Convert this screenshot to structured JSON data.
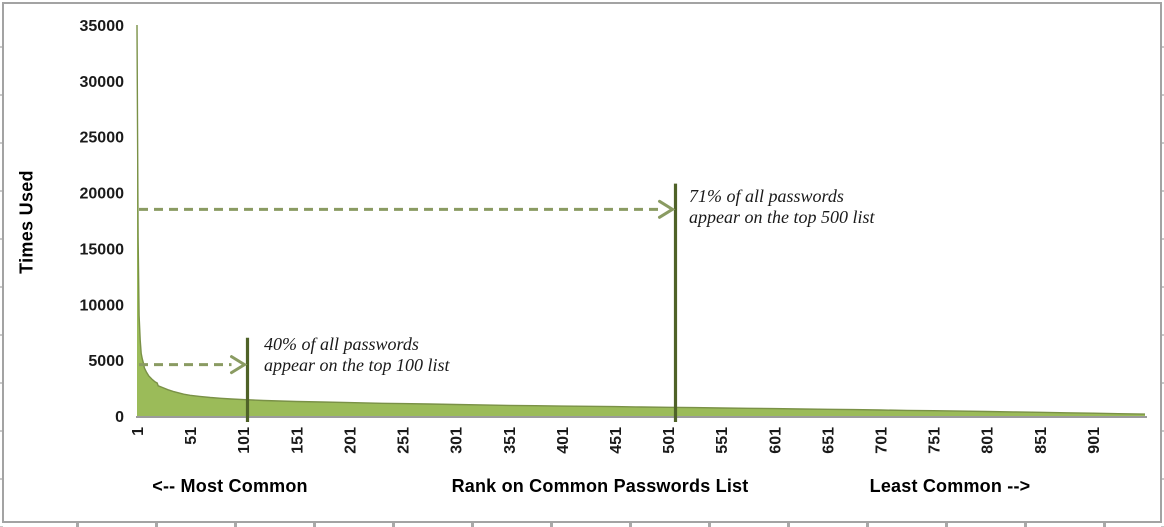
{
  "chart_data": {
    "type": "area",
    "title": "",
    "ylabel": "Times Used",
    "xlabel": "Rank on Common Passwords List",
    "xlabel_left": "<-- Most Common",
    "xlabel_right": "Least Common -->",
    "ylim": [
      0,
      35000
    ],
    "xlim": [
      1,
      950
    ],
    "grid": false,
    "legend": false,
    "yticks": [
      0,
      5000,
      10000,
      15000,
      20000,
      25000,
      30000,
      35000
    ],
    "xticks": [
      1,
      51,
      101,
      151,
      201,
      251,
      301,
      351,
      401,
      451,
      501,
      551,
      601,
      651,
      701,
      751,
      801,
      851,
      901
    ],
    "series": [
      {
        "name": "Times Used",
        "points": [
          [
            1,
            35000
          ],
          [
            2,
            16000
          ],
          [
            3,
            9000
          ],
          [
            4,
            6800
          ],
          [
            5,
            5600
          ],
          [
            6,
            5100
          ],
          [
            7,
            4750
          ],
          [
            8,
            4300
          ],
          [
            10,
            3900
          ],
          [
            12,
            3600
          ],
          [
            15,
            3300
          ],
          [
            18,
            3050
          ],
          [
            20,
            2950
          ],
          [
            21,
            2700
          ],
          [
            25,
            2550
          ],
          [
            30,
            2350
          ],
          [
            35,
            2200
          ],
          [
            40,
            2080
          ],
          [
            45,
            1950
          ],
          [
            51,
            1850
          ],
          [
            60,
            1750
          ],
          [
            70,
            1660
          ],
          [
            80,
            1580
          ],
          [
            90,
            1520
          ],
          [
            101,
            1470
          ],
          [
            120,
            1390
          ],
          [
            151,
            1300
          ],
          [
            175,
            1250
          ],
          [
            201,
            1200
          ],
          [
            226,
            1150
          ],
          [
            251,
            1110
          ],
          [
            276,
            1070
          ],
          [
            301,
            1030
          ],
          [
            326,
            990
          ],
          [
            351,
            950
          ],
          [
            376,
            920
          ],
          [
            401,
            890
          ],
          [
            426,
            865
          ],
          [
            451,
            840
          ],
          [
            476,
            810
          ],
          [
            501,
            780
          ],
          [
            526,
            750
          ],
          [
            551,
            720
          ],
          [
            576,
            690
          ],
          [
            601,
            660
          ],
          [
            626,
            630
          ],
          [
            651,
            600
          ],
          [
            676,
            570
          ],
          [
            701,
            540
          ],
          [
            726,
            505
          ],
          [
            751,
            470
          ],
          [
            776,
            435
          ],
          [
            801,
            400
          ],
          [
            826,
            365
          ],
          [
            851,
            330
          ],
          [
            876,
            290
          ],
          [
            901,
            250
          ],
          [
            925,
            210
          ],
          [
            950,
            170
          ]
        ]
      }
    ],
    "annotations": [
      {
        "line1": "40% of all passwords",
        "line2": "appear on the top 100 list",
        "marker_rank": 100,
        "marker_top_value": 7000,
        "arrow_value": 4600
      },
      {
        "line1": "71% of all passwords",
        "line2": "appear on the top 500 list",
        "marker_rank": 500,
        "marker_top_value": 20800,
        "arrow_value": 18500
      }
    ],
    "colors": {
      "area_fill": "#9bbb59",
      "area_stroke": "#7a9147",
      "marker_line": "#4f6228",
      "arrow": "#8a9b62",
      "axis_line": "#9b9b9b",
      "frame_border": "#a3a3a3",
      "gridline_stub": "#c9c9c9",
      "text": "#1a1a1a"
    }
  }
}
